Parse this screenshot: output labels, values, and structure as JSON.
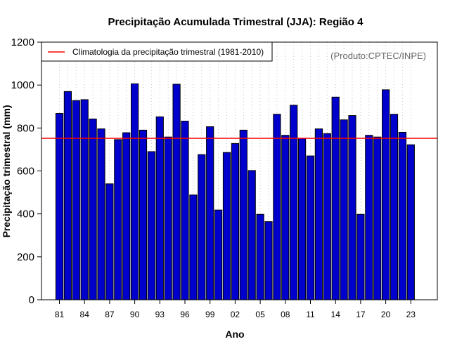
{
  "chart_data": {
    "type": "bar",
    "title": "Precipitação Acumulada Trimestral (JJA): Região 4",
    "xlabel": "Ano",
    "ylabel": "Precipitação trimestral (mm)",
    "ylim": [
      0,
      1200
    ],
    "yticks": [
      0,
      200,
      400,
      600,
      800,
      1000,
      1200
    ],
    "years": [
      1981,
      1982,
      1983,
      1984,
      1985,
      1986,
      1987,
      1988,
      1989,
      1990,
      1991,
      1992,
      1993,
      1994,
      1995,
      1996,
      1997,
      1998,
      1999,
      2000,
      2001,
      2002,
      2003,
      2004,
      2005,
      2006,
      2007,
      2008,
      2009,
      2010,
      2011,
      2012,
      2013,
      2014,
      2015,
      2016,
      2017,
      2018,
      2019,
      2020,
      2021,
      2022,
      2023
    ],
    "values": [
      868,
      970,
      928,
      932,
      842,
      796,
      540,
      746,
      778,
      1006,
      790,
      690,
      852,
      758,
      1004,
      832,
      488,
      676,
      806,
      418,
      686,
      728,
      790,
      602,
      398,
      364,
      864,
      766,
      906,
      752,
      670,
      796,
      774,
      944,
      838,
      858,
      398,
      766,
      758,
      978,
      864,
      780,
      722
    ],
    "tick_labels": [
      "81",
      "84",
      "87",
      "90",
      "93",
      "96",
      "99",
      "02",
      "05",
      "08",
      "11",
      "14",
      "17",
      "20",
      "23"
    ],
    "tick_years": [
      1981,
      1984,
      1987,
      1990,
      1993,
      1996,
      1999,
      2002,
      2005,
      2008,
      2011,
      2014,
      2017,
      2020,
      2023
    ],
    "climatology": {
      "value": 752,
      "label": "Climatologia da precipitação trimestral (1981-2010)",
      "color": "#ff0000"
    },
    "bar_color": "#0000cc",
    "legend_position": "top-left",
    "grid": "vertical dotted",
    "credit": "(Produto:CPTEC/INPE)"
  }
}
